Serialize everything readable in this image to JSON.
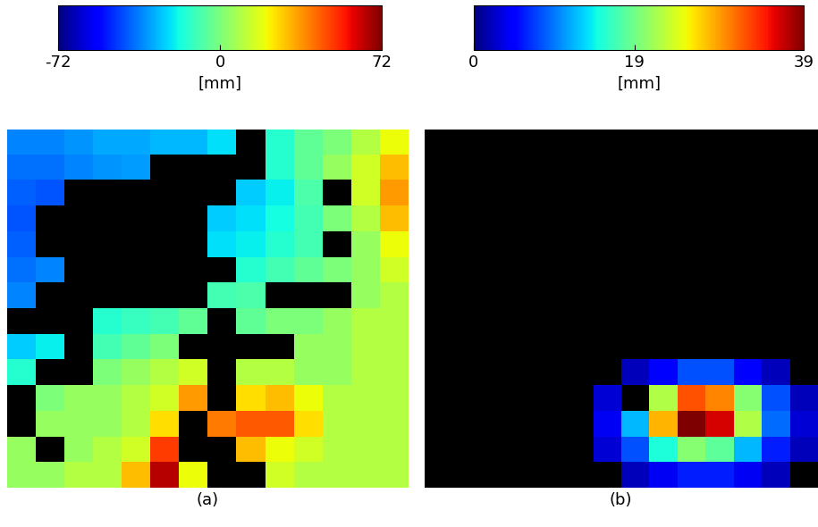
{
  "chart_data": [
    {
      "type": "heatmap",
      "xlabel": "(a)",
      "color": "jet",
      "tick_labels": false,
      "color_range": [
        -72,
        72
      ],
      "color_ticks": [
        -72,
        0,
        72
      ],
      "color_label": "[mm]",
      "cells": [
        [
          -35,
          -35,
          -33,
          -30,
          -30,
          -28,
          -28,
          -22,
          null,
          -15,
          -5,
          0,
          10,
          20
        ],
        [
          -38,
          -38,
          -35,
          -33,
          -32,
          null,
          null,
          null,
          null,
          -15,
          -5,
          5,
          15,
          30
        ],
        [
          -40,
          -42,
          null,
          null,
          null,
          null,
          null,
          null,
          -25,
          -20,
          -8,
          null,
          15,
          35
        ],
        [
          -42,
          null,
          null,
          null,
          null,
          null,
          null,
          -25,
          -22,
          -18,
          -10,
          0,
          10,
          30
        ],
        [
          -40,
          null,
          null,
          null,
          null,
          null,
          null,
          -22,
          -20,
          -15,
          -10,
          null,
          5,
          20
        ],
        [
          -38,
          -35,
          null,
          null,
          null,
          null,
          null,
          null,
          -15,
          -10,
          -5,
          0,
          5,
          15
        ],
        [
          -35,
          null,
          null,
          null,
          null,
          null,
          null,
          -10,
          -8,
          null,
          null,
          null,
          5,
          10
        ],
        [
          null,
          null,
          null,
          -15,
          -12,
          -10,
          -5,
          null,
          -5,
          0,
          0,
          5,
          10,
          10
        ],
        [
          -25,
          -20,
          null,
          -10,
          -5,
          0,
          null,
          null,
          null,
          null,
          5,
          5,
          10,
          10
        ],
        [
          -15,
          null,
          null,
          0,
          5,
          10,
          15,
          null,
          10,
          10,
          5,
          5,
          10,
          10
        ],
        [
          null,
          0,
          5,
          5,
          10,
          15,
          35,
          null,
          25,
          30,
          20,
          10,
          10,
          10
        ],
        [
          null,
          5,
          5,
          5,
          10,
          25,
          null,
          40,
          45,
          45,
          25,
          10,
          10,
          10
        ],
        [
          5,
          null,
          5,
          10,
          15,
          50,
          null,
          null,
          30,
          20,
          15,
          10,
          10,
          10
        ],
        [
          5,
          5,
          10,
          10,
          30,
          65,
          20,
          null,
          null,
          15,
          10,
          10,
          10,
          10
        ]
      ]
    },
    {
      "type": "heatmap",
      "xlabel": "(b)",
      "color": "jet",
      "tick_labels": false,
      "color_range": [
        0,
        39
      ],
      "color_ticks": [
        0,
        19,
        39
      ],
      "color_label": "[mm]",
      "cells": [
        [
          null,
          null,
          null,
          null,
          null,
          null,
          null,
          null,
          null,
          null,
          null,
          null,
          null,
          null
        ],
        [
          null,
          null,
          null,
          null,
          null,
          null,
          null,
          null,
          null,
          null,
          null,
          null,
          null,
          null
        ],
        [
          null,
          null,
          null,
          null,
          null,
          null,
          null,
          null,
          null,
          null,
          null,
          null,
          null,
          null
        ],
        [
          null,
          null,
          null,
          null,
          null,
          null,
          null,
          null,
          null,
          null,
          null,
          null,
          null,
          null
        ],
        [
          null,
          null,
          null,
          null,
          null,
          null,
          null,
          null,
          null,
          null,
          null,
          null,
          null,
          null
        ],
        [
          null,
          null,
          null,
          null,
          null,
          null,
          null,
          null,
          null,
          null,
          null,
          null,
          null,
          null
        ],
        [
          null,
          null,
          null,
          null,
          null,
          null,
          null,
          null,
          null,
          null,
          null,
          null,
          null,
          null
        ],
        [
          null,
          null,
          null,
          null,
          null,
          null,
          null,
          null,
          null,
          null,
          null,
          null,
          null,
          null
        ],
        [
          null,
          null,
          null,
          null,
          null,
          null,
          null,
          null,
          null,
          null,
          null,
          null,
          null,
          null
        ],
        [
          null,
          null,
          null,
          null,
          null,
          null,
          null,
          2,
          5,
          8,
          8,
          5,
          2,
          null
        ],
        [
          null,
          null,
          null,
          null,
          null,
          null,
          3,
          null,
          22,
          32,
          30,
          20,
          8,
          2
        ],
        [
          null,
          null,
          null,
          null,
          null,
          null,
          4,
          12,
          28,
          39,
          36,
          22,
          9,
          3
        ],
        [
          null,
          null,
          null,
          null,
          null,
          null,
          3,
          8,
          15,
          20,
          18,
          12,
          6,
          2
        ],
        [
          null,
          null,
          null,
          null,
          null,
          null,
          null,
          2,
          4,
          6,
          6,
          4,
          2,
          null
        ]
      ]
    }
  ]
}
